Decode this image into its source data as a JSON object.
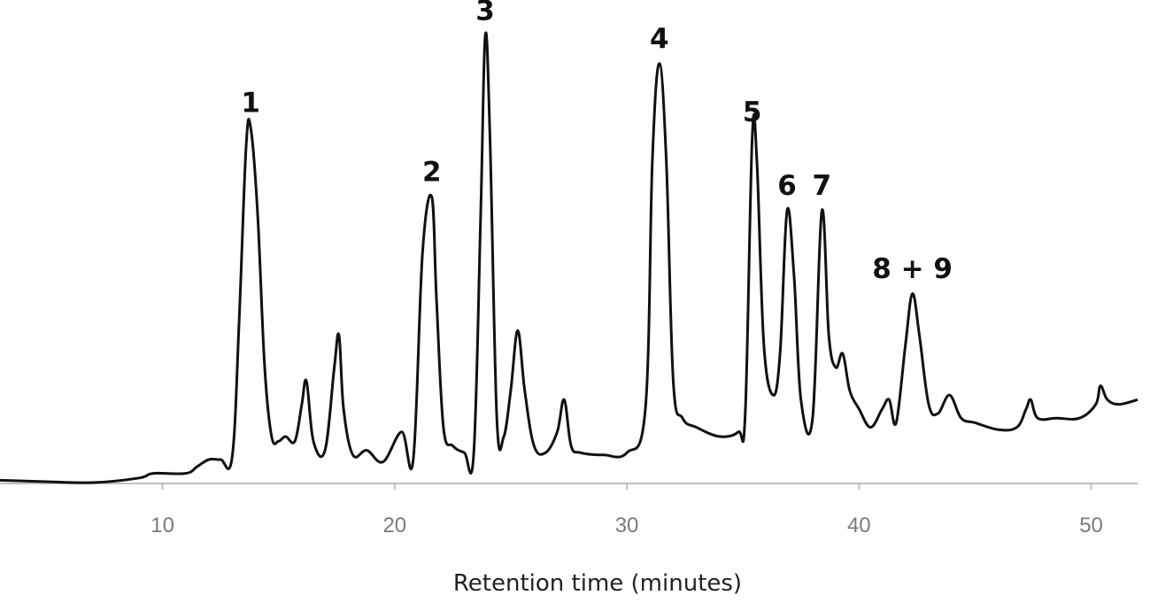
{
  "chart_data": {
    "type": "line",
    "title": "",
    "xlabel": "Retention time (minutes)",
    "ylabel": "",
    "xlim": [
      3,
      52
    ],
    "ylim": [
      0,
      100
    ],
    "xticks": [
      10,
      20,
      30,
      40,
      50
    ],
    "xtick_labels": [
      "10",
      "20",
      "30",
      "40",
      "50"
    ],
    "grid": false,
    "line_color": "#111111",
    "axis_color": "#bfbfbf",
    "series": [
      {
        "x": [
          3.0,
          5.0,
          7.0,
          9.0,
          9.6,
          11.0,
          11.5,
          12.0,
          12.5,
          13.0,
          13.3,
          13.6,
          13.8,
          14.1,
          14.4,
          14.7,
          15.0,
          15.3,
          15.7,
          16.0,
          16.2,
          16.5,
          17.0,
          17.4,
          17.6,
          17.8,
          18.2,
          18.8,
          19.5,
          20.3,
          20.8,
          21.2,
          21.6,
          21.8,
          22.1,
          22.5,
          23.0,
          23.4,
          23.7,
          23.9,
          24.1,
          24.4,
          24.7,
          25.0,
          25.3,
          25.6,
          26.0,
          26.5,
          27.0,
          27.3,
          27.6,
          28.0,
          29.0,
          30.0,
          30.8,
          31.1,
          31.4,
          31.7,
          32.0,
          32.4,
          33.0,
          34.0,
          34.8,
          35.1,
          35.4,
          35.6,
          35.9,
          36.3,
          36.6,
          36.9,
          37.2,
          37.5,
          38.0,
          38.4,
          38.7,
          39.0,
          39.3,
          39.6,
          40.0,
          40.5,
          41.0,
          41.3,
          41.6,
          42.0,
          42.3,
          42.6,
          43.0,
          43.4,
          43.9,
          44.4,
          45.0,
          46.0,
          46.8,
          47.2,
          47.4,
          47.7,
          48.5,
          49.5,
          50.2,
          50.4,
          50.7,
          51.2,
          52.0
        ],
        "y": [
          0.5,
          0.2,
          0.0,
          1.0,
          2.0,
          2.0,
          3.5,
          5.0,
          5.0,
          5.5,
          35.0,
          73.0,
          77.0,
          58.0,
          25.0,
          10.0,
          9.0,
          10.0,
          9.0,
          17.0,
          22.0,
          9.0,
          7.0,
          25.0,
          32.0,
          16.0,
          6.0,
          7.0,
          4.5,
          11.0,
          5.0,
          50.0,
          62.0,
          40.0,
          12.0,
          8.0,
          6.5,
          6.0,
          57.0,
          97.0,
          76.0,
          14.0,
          10.0,
          20.0,
          33.0,
          20.0,
          8.0,
          6.5,
          11.0,
          18.0,
          8.0,
          6.5,
          6.0,
          6.5,
          16.0,
          70.0,
          91.0,
          70.0,
          22.0,
          14.0,
          12.0,
          10.0,
          11.0,
          15.0,
          75.0,
          70.0,
          30.0,
          19.0,
          28.0,
          59.0,
          45.0,
          18.0,
          14.0,
          59.0,
          32.0,
          25.0,
          28.0,
          20.0,
          16.0,
          12.0,
          16.0,
          18.0,
          13.0,
          30.0,
          41.0,
          32.0,
          17.0,
          15.0,
          19.0,
          14.0,
          13.0,
          11.5,
          12.0,
          16.0,
          18.0,
          14.0,
          14.0,
          14.0,
          17.0,
          21.0,
          18.0,
          17.0,
          18.0
        ]
      }
    ],
    "annotations": [
      {
        "text": "1",
        "x": 13.8,
        "y": 77.0
      },
      {
        "text": "2",
        "x": 21.6,
        "y": 62.0
      },
      {
        "text": "3",
        "x": 23.9,
        "y": 97.0
      },
      {
        "text": "4",
        "x": 31.4,
        "y": 91.0
      },
      {
        "text": "5",
        "x": 35.4,
        "y": 75.0
      },
      {
        "text": "6",
        "x": 36.9,
        "y": 59.0
      },
      {
        "text": "7",
        "x": 38.4,
        "y": 59.0
      },
      {
        "text": "8 + 9",
        "x": 42.3,
        "y": 41.0
      }
    ]
  }
}
